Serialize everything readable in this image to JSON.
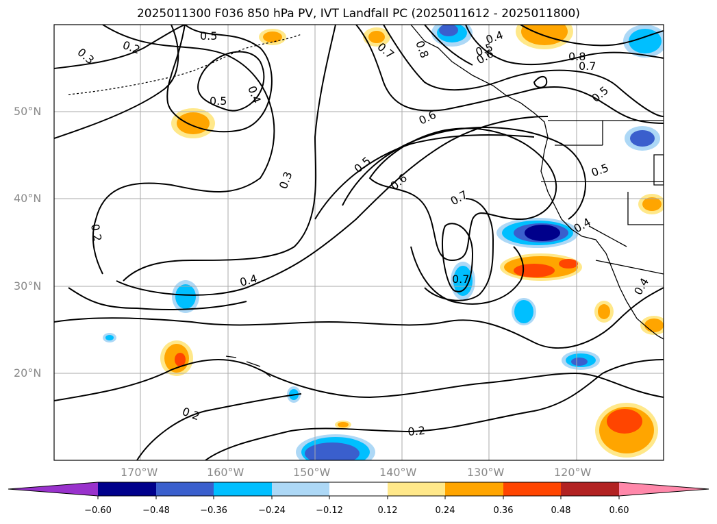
{
  "title": "2025011300 F036 850 hPa PV, IVT Landfall PC (2025011612 - 2025011800)",
  "map": {
    "lat_labels": [
      "50°N",
      "40°N",
      "30°N",
      "20°N"
    ],
    "lon_labels": [
      "170°W",
      "160°W",
      "150°W",
      "140°W",
      "130°W",
      "120°W"
    ],
    "contour_labels": [
      "0.3",
      "0.2",
      "0.5",
      "0.4",
      "0.5",
      "0.2",
      "0.3",
      "0.4",
      "0.7",
      "0.8",
      "0.5",
      "0.6",
      "0.4",
      "0.8",
      "0.7",
      "0.5",
      "0.6",
      "0.5",
      "0.6",
      "0.7",
      "0.5",
      "0.4",
      "0.7",
      "0.4",
      "0.2",
      "0.2"
    ]
  },
  "colorbar": {
    "ticks": [
      "−0.60",
      "−0.48",
      "−0.36",
      "−0.24",
      "−0.12",
      "0.12",
      "0.24",
      "0.36",
      "0.48",
      "0.60"
    ],
    "colors": [
      "#9932cc",
      "#00008b",
      "#3a5fcd",
      "#00bfff",
      "#add8f6",
      "#ffffff",
      "#ffe88a",
      "#ffa500",
      "#ff4500",
      "#b22222",
      "#ff88aa"
    ]
  }
}
